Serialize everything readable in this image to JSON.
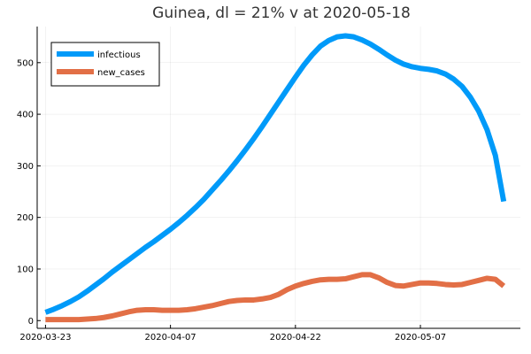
{
  "chart_data": {
    "type": "line",
    "title": "Guinea,  dl = 21% v at 2020-05-18",
    "xlabel": "",
    "ylabel": "",
    "x_start": "2020-03-23",
    "x_end": "2020-05-18",
    "xlim": [
      "2020-03-22",
      "2020-05-19"
    ],
    "ylim": [
      -15,
      570
    ],
    "x_ticks": [
      {
        "date": "2020-03-23",
        "label": "2020-03-23"
      },
      {
        "date": "2020-04-07",
        "label": "2020-04-07"
      },
      {
        "date": "2020-04-22",
        "label": "2020-04-22"
      },
      {
        "date": "2020-05-07",
        "label": "2020-05-07"
      }
    ],
    "y_ticks": [
      0,
      100,
      200,
      300,
      400,
      500
    ],
    "grid": true,
    "legend": "top-left",
    "series": [
      {
        "name": "infectious",
        "color": "#009AF9",
        "values": [
          16,
          22,
          29,
          37,
          46,
          57,
          69,
          81,
          94,
          106,
          118,
          130,
          142,
          153,
          165,
          177,
          190,
          204,
          219,
          235,
          253,
          271,
          290,
          310,
          331,
          353,
          376,
          400,
          424,
          448,
          472,
          495,
          515,
          532,
          543,
          550,
          552,
          550,
          544,
          536,
          526,
          515,
          505,
          497,
          492,
          489,
          487,
          484,
          478,
          468,
          454,
          433,
          406,
          370,
          320,
          231
        ]
      },
      {
        "name": "new_cases",
        "color": "#E26F46",
        "values": [
          2,
          2,
          2,
          2,
          2,
          3,
          4,
          6,
          9,
          13,
          17,
          20,
          21,
          21,
          20,
          20,
          20,
          21,
          23,
          26,
          29,
          33,
          37,
          39,
          40,
          40,
          42,
          45,
          51,
          60,
          67,
          72,
          76,
          79,
          80,
          80,
          81,
          85,
          89,
          89,
          83,
          74,
          68,
          67,
          70,
          73,
          73,
          72,
          70,
          69,
          70,
          74,
          78,
          82,
          80,
          67
        ]
      }
    ]
  }
}
